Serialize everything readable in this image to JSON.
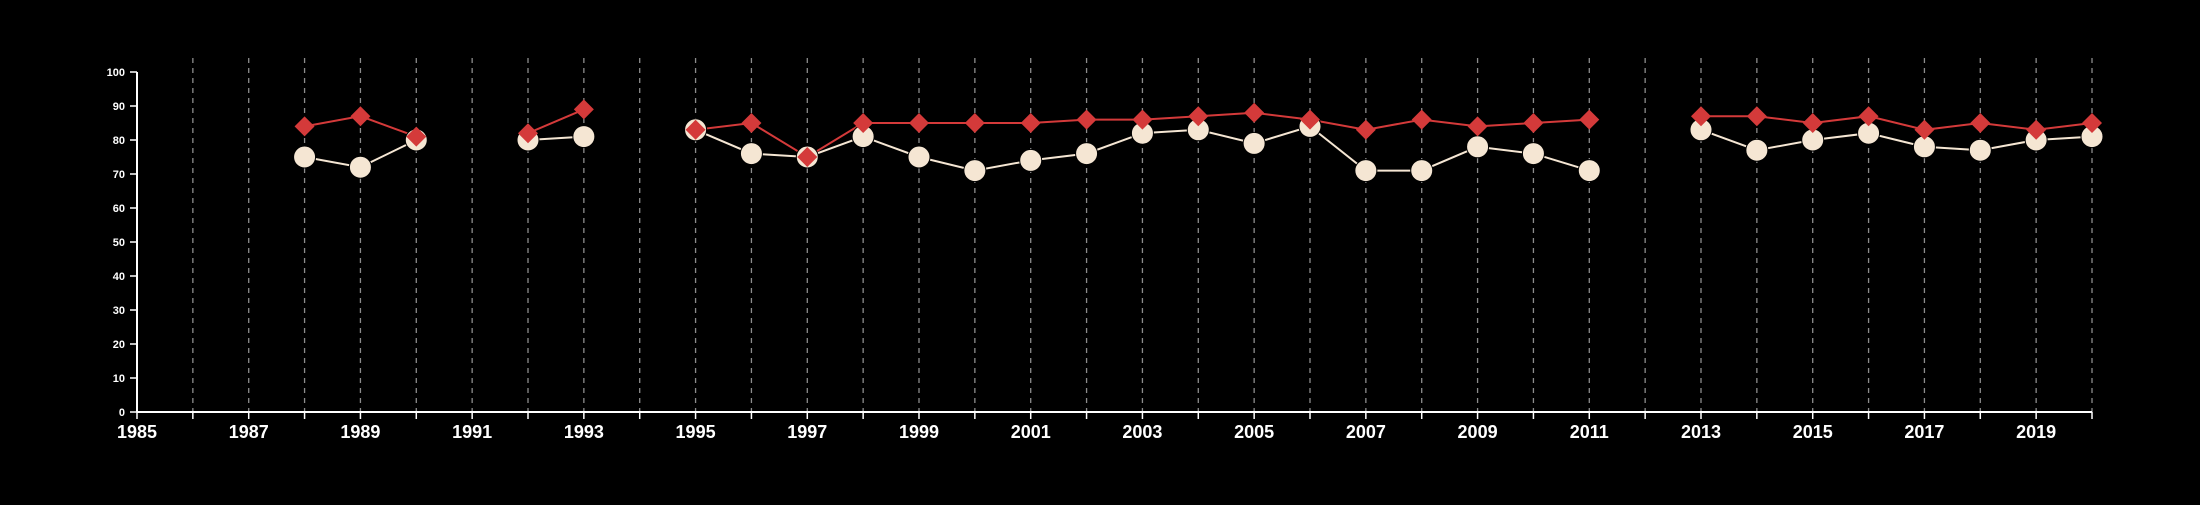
{
  "chart_data": {
    "type": "line",
    "title": "",
    "xlabel": "",
    "ylabel": "",
    "xlim": [
      1985,
      2020
    ],
    "ylim": [
      0,
      100
    ],
    "yticks": [
      0,
      10,
      20,
      30,
      40,
      50,
      60,
      70,
      80,
      90,
      100
    ],
    "xticks_labeled": [
      1985,
      1987,
      1989,
      1991,
      1993,
      1995,
      1997,
      1999,
      2001,
      2003,
      2005,
      2007,
      2009,
      2011,
      2013,
      2015,
      2017,
      2019
    ],
    "vertical_dashed_gridlines": true,
    "series": [
      {
        "marker": "diamond",
        "color": "#d43a3a",
        "points": [
          [
            1988,
            84
          ],
          [
            1989,
            87
          ],
          [
            1990,
            81
          ],
          [
            1992,
            82
          ],
          [
            1993,
            89
          ],
          [
            1995,
            83
          ],
          [
            1996,
            85
          ],
          [
            1997,
            75
          ],
          [
            1998,
            85
          ],
          [
            1999,
            85
          ],
          [
            2000,
            85
          ],
          [
            2001,
            85
          ],
          [
            2002,
            86
          ],
          [
            2003,
            86
          ],
          [
            2004,
            87
          ],
          [
            2005,
            88
          ],
          [
            2006,
            86
          ],
          [
            2007,
            83
          ],
          [
            2008,
            86
          ],
          [
            2009,
            84
          ],
          [
            2010,
            85
          ],
          [
            2011,
            86
          ],
          [
            2013,
            87
          ],
          [
            2014,
            87
          ],
          [
            2015,
            85
          ],
          [
            2016,
            87
          ],
          [
            2017,
            83
          ],
          [
            2018,
            85
          ],
          [
            2019,
            83
          ],
          [
            2020,
            85
          ]
        ]
      },
      {
        "marker": "circle",
        "color": "#f5e6d3",
        "points": [
          [
            1988,
            75
          ],
          [
            1989,
            72
          ],
          [
            1990,
            80
          ],
          [
            1992,
            80
          ],
          [
            1993,
            81
          ],
          [
            1995,
            83
          ],
          [
            1996,
            76
          ],
          [
            1997,
            75
          ],
          [
            1998,
            81
          ],
          [
            1999,
            75
          ],
          [
            2000,
            71
          ],
          [
            2001,
            74
          ],
          [
            2002,
            76
          ],
          [
            2003,
            82
          ],
          [
            2004,
            83
          ],
          [
            2005,
            79
          ],
          [
            2006,
            84
          ],
          [
            2007,
            71
          ],
          [
            2008,
            71
          ],
          [
            2009,
            78
          ],
          [
            2010,
            76
          ],
          [
            2011,
            71
          ],
          [
            2013,
            83
          ],
          [
            2014,
            77
          ],
          [
            2015,
            80
          ],
          [
            2016,
            82
          ],
          [
            2017,
            78
          ],
          [
            2018,
            77
          ],
          [
            2019,
            80
          ],
          [
            2020,
            81
          ]
        ]
      }
    ]
  }
}
